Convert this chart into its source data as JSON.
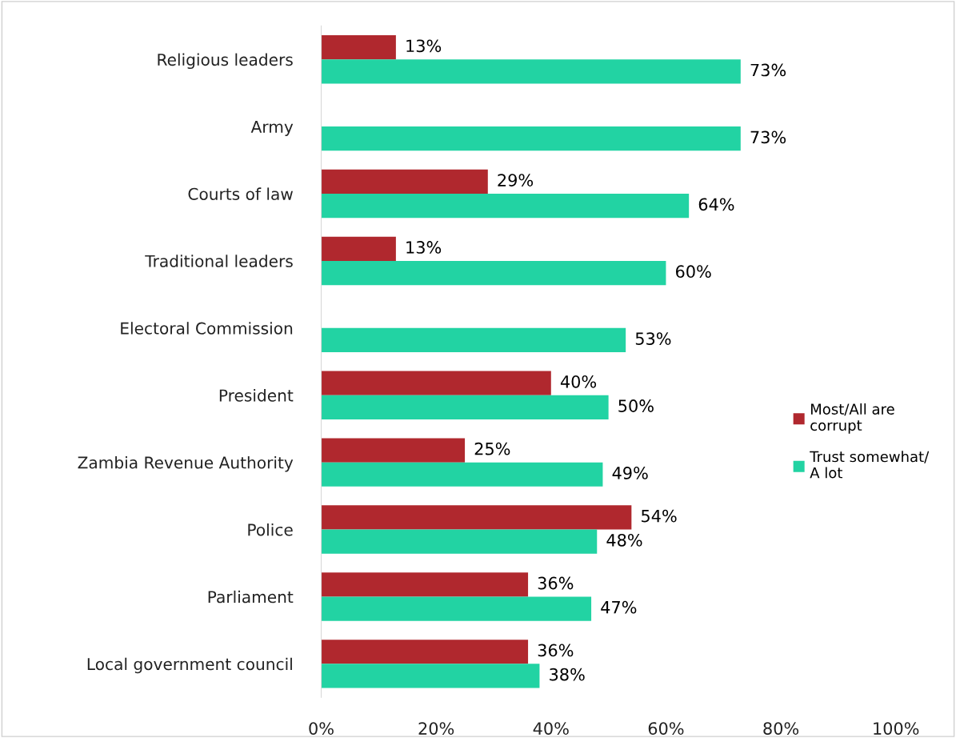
{
  "chart_data": {
    "type": "bar",
    "orientation": "horizontal",
    "categories": [
      "Religious leaders",
      "Army",
      "Courts of law",
      "Traditional leaders",
      "Electoral Commission",
      "President",
      "Zambia Revenue Authority",
      "Police",
      "Parliament",
      "Local government council"
    ],
    "series": [
      {
        "name": "Most/All are\ncorrupt",
        "color": "#b0282e",
        "values": [
          13,
          null,
          29,
          13,
          null,
          40,
          25,
          54,
          36,
          36
        ],
        "value_labels": [
          "13%",
          null,
          "29%",
          "13%",
          null,
          "40%",
          "25%",
          "54%",
          "36%",
          "36%"
        ]
      },
      {
        "name": "Trust somewhat/\nA lot",
        "color": "#22d3a3",
        "values": [
          73,
          73,
          64,
          60,
          53,
          50,
          49,
          48,
          47,
          38
        ],
        "value_labels": [
          "73%",
          "73%",
          "64%",
          "60%",
          "53%",
          "50%",
          "49%",
          "48%",
          "47%",
          "38%"
        ]
      }
    ],
    "xlim": [
      0,
      100
    ],
    "xticks": [
      {
        "value": 0,
        "label": "0%"
      },
      {
        "value": 20,
        "label": "20%"
      },
      {
        "value": 40,
        "label": "40%"
      },
      {
        "value": 60,
        "label": "60%"
      },
      {
        "value": 80,
        "label": "80%"
      },
      {
        "value": 100,
        "label": "100%"
      }
    ],
    "grid": false,
    "legend": "right"
  }
}
